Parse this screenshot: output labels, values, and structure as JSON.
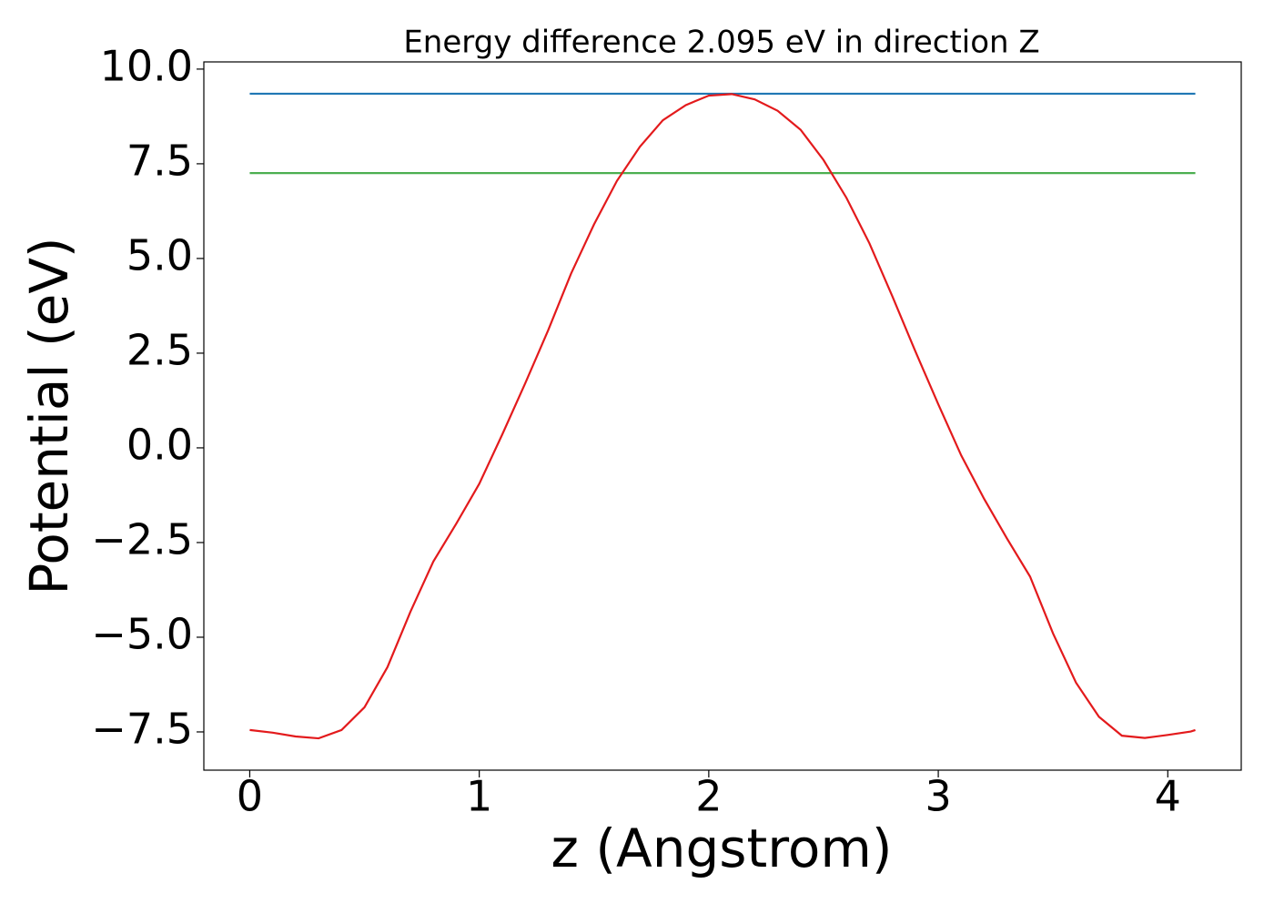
{
  "chart_data": {
    "type": "line",
    "title": "Energy difference 2.095 eV in direction Z",
    "x_label": "z (Angstrom)",
    "y_label": "Potential (eV)",
    "xlim": [
      -0.2,
      4.32
    ],
    "ylim": [
      -8.51,
      10.19
    ],
    "xticks": [
      0,
      1,
      2,
      3,
      4
    ],
    "yticks": [
      {
        "value": -7.5,
        "label": "−7.5"
      },
      {
        "value": -5,
        "label": "−5.0"
      },
      {
        "value": -2.5,
        "label": "−2.5"
      },
      {
        "value": 0,
        "label": "0.0"
      },
      2.5,
      {
        "value": 5,
        "label": "5.0"
      },
      7.5,
      {
        "value": 10,
        "label": "10.0"
      }
    ],
    "series": [
      {
        "color": "#1f77b4",
        "x": [
          0,
          4.12
        ],
        "values": [
          9.35,
          9.35
        ]
      },
      {
        "color": "#4caf50",
        "x": [
          0,
          4.12
        ],
        "values": [
          7.255,
          7.255
        ]
      },
      {
        "color": "#e31a1c",
        "x": [
          0,
          0.1,
          0.2,
          0.3,
          0.4,
          0.5,
          0.6,
          0.7,
          0.8,
          0.9,
          1.0,
          1.1,
          1.2,
          1.3,
          1.4,
          1.5,
          1.6,
          1.7,
          1.8,
          1.9,
          2.0,
          2.1,
          2.2,
          2.3,
          2.4,
          2.5,
          2.6,
          2.7,
          2.8,
          2.9,
          3.0,
          3.1,
          3.2,
          3.3,
          3.4,
          3.5,
          3.6,
          3.7,
          3.8,
          3.9,
          4.0,
          4.1,
          4.12
        ],
        "values": [
          -7.45,
          -7.52,
          -7.62,
          -7.67,
          -7.45,
          -6.85,
          -5.79,
          -4.33,
          -3.0,
          -2.0,
          -0.95,
          0.35,
          1.7,
          3.1,
          4.6,
          5.9,
          7.05,
          7.95,
          8.65,
          9.05,
          9.3,
          9.34,
          9.2,
          8.9,
          8.4,
          7.6,
          6.6,
          5.4,
          4.0,
          2.55,
          1.15,
          -0.2,
          -1.35,
          -2.4,
          -3.4,
          -4.9,
          -6.2,
          -7.1,
          -7.6,
          -7.66,
          -7.58,
          -7.49,
          -7.45
        ]
      }
    ]
  }
}
